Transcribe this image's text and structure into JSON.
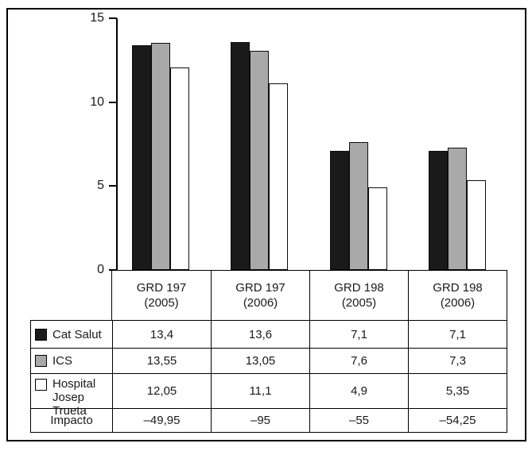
{
  "figure": {
    "background": "#ffffff",
    "border_color": "#000000"
  },
  "chart_data": {
    "type": "bar",
    "title": "",
    "xlabel": "",
    "ylabel": "",
    "ylim": [
      0,
      15
    ],
    "grid": false,
    "legend_position": "table-left-column",
    "y_ticks": [
      15,
      10,
      5,
      0
    ],
    "categories": [
      "GRD 197 (2005)",
      "GRD 197 (2006)",
      "GRD 198 (2005)",
      "GRD 198 (2006)"
    ],
    "category_lines": [
      [
        "GRD 197",
        "(2005)"
      ],
      [
        "GRD 197",
        "(2006)"
      ],
      [
        "GRD 198",
        "(2005)"
      ],
      [
        "GRD 198",
        "(2006)"
      ]
    ],
    "series": [
      {
        "name": "Cat Salut",
        "name_lines": [
          "Cat Salut"
        ],
        "color": "#1a1a1a",
        "swatch": "black-square",
        "values": [
          13.4,
          13.6,
          7.1,
          7.1
        ]
      },
      {
        "name": "ICS",
        "name_lines": [
          "ICS"
        ],
        "color": "#a9a9a9",
        "swatch": "gray-square",
        "values": [
          13.55,
          13.05,
          7.6,
          7.3
        ]
      },
      {
        "name": "Hospital Josep Trueta",
        "name_lines": [
          "Hospital",
          "Josep Trueta"
        ],
        "color": "#ffffff",
        "swatch": "white-square",
        "values": [
          12.05,
          11.1,
          4.9,
          5.35
        ]
      }
    ],
    "extra_rows": [
      {
        "name": "Impacto",
        "values": [
          -49.95,
          -95,
          -55,
          -54.25
        ]
      }
    ],
    "decimal_separator": ",",
    "negative_sign": "–"
  }
}
